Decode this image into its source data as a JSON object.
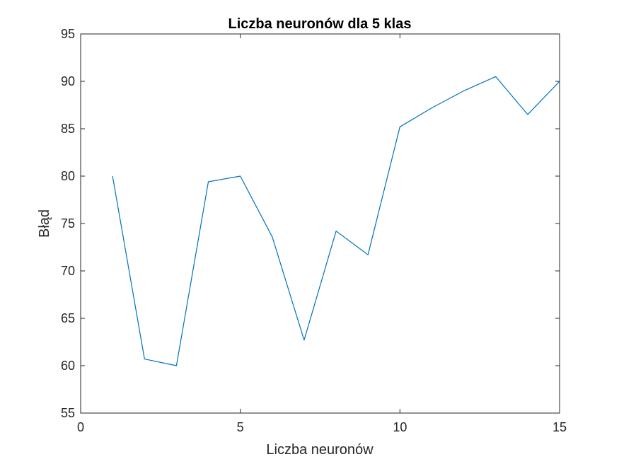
{
  "chart_data": {
    "type": "line",
    "title": "Liczba neuronów dla 5 klas",
    "xlabel": "Liczba neuronów",
    "ylabel": "Błąd",
    "xlim": [
      0,
      15
    ],
    "ylim": [
      55,
      95
    ],
    "xticks": [
      0,
      5,
      10,
      15
    ],
    "yticks": [
      55,
      60,
      65,
      70,
      75,
      80,
      85,
      90,
      95
    ],
    "grid": false,
    "legend": "none",
    "series": [
      {
        "x": [
          1,
          2,
          3,
          4,
          5,
          6,
          7,
          8,
          9,
          10,
          11,
          12,
          13,
          14,
          15
        ],
        "y": [
          80,
          60.7,
          60,
          79.4,
          80,
          73.6,
          62.7,
          74.2,
          71.7,
          85.2,
          87.2,
          89,
          90.5,
          86.5,
          90
        ],
        "color": "#0072BD"
      }
    ]
  }
}
